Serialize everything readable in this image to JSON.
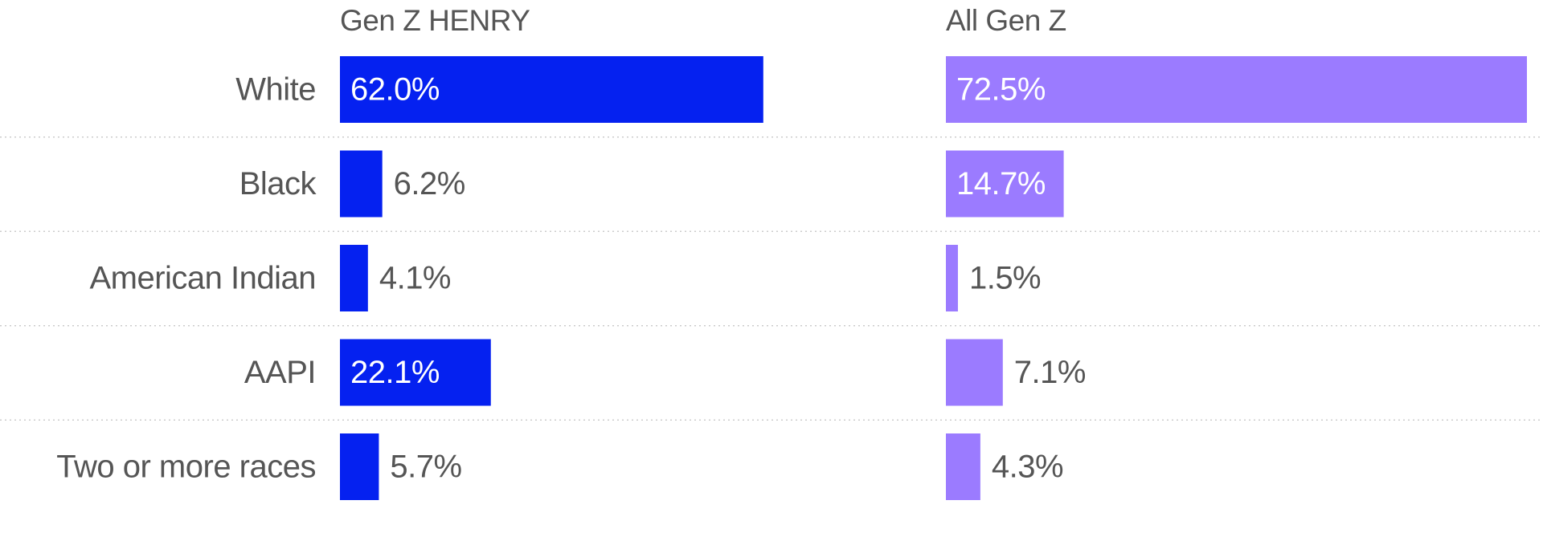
{
  "colors": {
    "gen_z_henry": "#0521f0",
    "all_gen_z": "#9b7bff",
    "label_text": "#555555",
    "inside_text": "#ffffff",
    "divider": "#cccccc"
  },
  "chart_data": {
    "type": "bar",
    "orientation": "horizontal",
    "layout": "small-multiples",
    "categories": [
      "White",
      "Black",
      "American Indian",
      "AAPI",
      "Two or more races"
    ],
    "series": [
      {
        "name": "Gen Z HENRY",
        "values": [
          62.0,
          6.2,
          4.1,
          22.1,
          5.7
        ],
        "labels": [
          "62.0%",
          "6.2%",
          "4.1%",
          "22.1%",
          "5.7%"
        ]
      },
      {
        "name": "All Gen Z",
        "values": [
          72.5,
          14.7,
          1.5,
          7.1,
          4.3
        ],
        "labels": [
          "72.5%",
          "14.7%",
          "1.5%",
          "7.1%",
          "4.3%"
        ]
      }
    ],
    "title": "",
    "xlabel": "",
    "ylabel": "",
    "xlim": [
      0,
      72.5
    ],
    "grid": false,
    "legend": "none"
  }
}
